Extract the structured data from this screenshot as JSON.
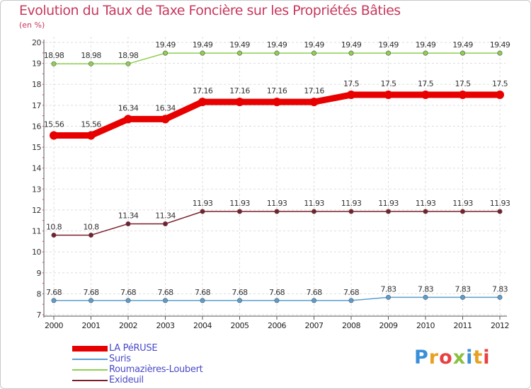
{
  "title": "Evolution du Taux de Taxe Foncière sur les Propriétés Bâties",
  "unit": "(en %)",
  "logo": {
    "text": "Proxiti",
    "colors": [
      "#3a8fd8",
      "#e8a020",
      "#e84040",
      "#8ac040",
      "#3a8fd8",
      "#e8a020",
      "#e84040"
    ]
  },
  "chart_data": {
    "type": "line",
    "title": "Evolution du Taux de Taxe Foncière sur les Propriétés Bâties",
    "ylabel": "(en %)",
    "xlabel": "",
    "ylim": [
      7,
      20
    ],
    "yticks": [
      "7",
      "8",
      "9",
      "10",
      "11",
      "12",
      "13",
      "14",
      "15",
      "16",
      "17",
      "18",
      "19",
      "20"
    ],
    "categories": [
      "2000",
      "2001",
      "2002",
      "2003",
      "2004",
      "2005",
      "2006",
      "2007",
      "2008",
      "2009",
      "2010",
      "2011",
      "2012"
    ],
    "series": [
      {
        "name": "LA PéRUSE",
        "color": "#e80000",
        "emphasis": true,
        "values": [
          15.56,
          15.56,
          16.34,
          16.34,
          17.16,
          17.16,
          17.16,
          17.16,
          17.5,
          17.5,
          17.5,
          17.5,
          17.5
        ],
        "labels": [
          "15.56",
          "15.56",
          "16.34",
          "16.34",
          "17.16",
          "17.16",
          "17.16",
          "17.16",
          "17.5",
          "17.5",
          "17.5",
          "17.5",
          "17.5"
        ]
      },
      {
        "name": "Suris",
        "color": "#5a9ed0",
        "emphasis": false,
        "values": [
          7.68,
          7.68,
          7.68,
          7.68,
          7.68,
          7.68,
          7.68,
          7.68,
          7.68,
          7.83,
          7.83,
          7.83,
          7.83
        ],
        "labels": [
          "7.68",
          "7.68",
          "7.68",
          "7.68",
          "7.68",
          "7.68",
          "7.68",
          "7.68",
          "7.68",
          "7.83",
          "7.83",
          "7.83",
          "7.83"
        ]
      },
      {
        "name": "Roumazières-Loubert",
        "color": "#8ed050",
        "emphasis": false,
        "values": [
          18.98,
          18.98,
          18.98,
          19.49,
          19.49,
          19.49,
          19.49,
          19.49,
          19.49,
          19.49,
          19.49,
          19.49,
          19.49
        ],
        "labels": [
          "18.98",
          "18.98",
          "18.98",
          "19.49",
          "19.49",
          "19.49",
          "19.49",
          "19.49",
          "19.49",
          "19.49",
          "19.49",
          "19.49",
          "19.49"
        ]
      },
      {
        "name": "Exideuil",
        "color": "#7a1e2a",
        "emphasis": false,
        "values": [
          10.8,
          10.8,
          11.34,
          11.34,
          11.93,
          11.93,
          11.93,
          11.93,
          11.93,
          11.93,
          11.93,
          11.93,
          11.93
        ],
        "labels": [
          "10.8",
          "10.8",
          "11.34",
          "11.34",
          "11.93",
          "11.93",
          "11.93",
          "11.93",
          "11.93",
          "11.93",
          "11.93",
          "11.93",
          "11.93"
        ]
      }
    ]
  }
}
